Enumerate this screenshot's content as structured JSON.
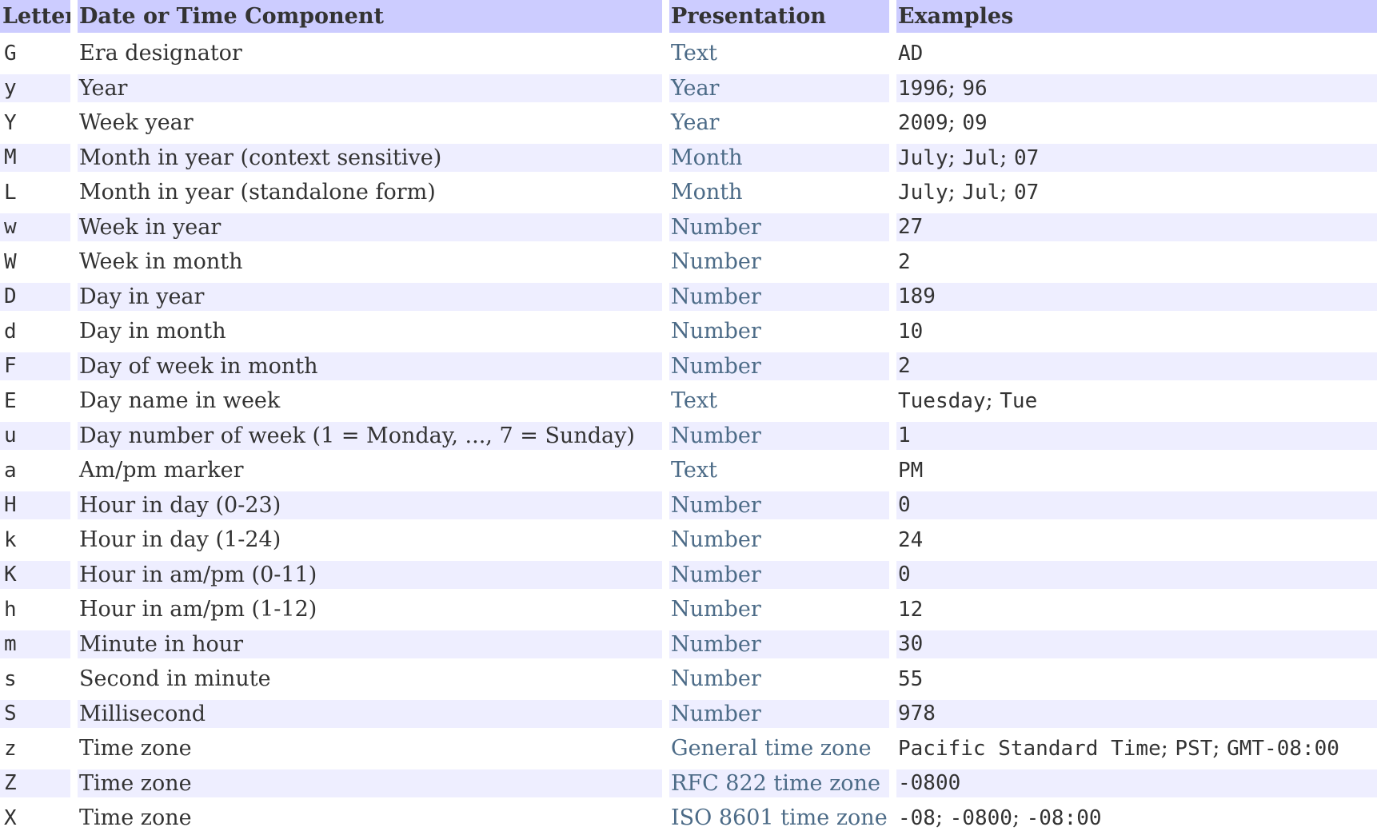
{
  "colors": {
    "header_bg": "#ccccff",
    "alt_row_bg": "#eeeeff",
    "row_bg": "#ffffff",
    "text": "#333333",
    "link": "#4c6b87"
  },
  "table": {
    "example_separator": "; ",
    "columns": [
      {
        "key": "letter",
        "label": "Letter"
      },
      {
        "key": "component",
        "label": "Date or Time Component"
      },
      {
        "key": "presentation",
        "label": "Presentation"
      },
      {
        "key": "examples",
        "label": "Examples"
      }
    ],
    "rows": [
      {
        "letter": "G",
        "component": "Era designator",
        "presentation": "Text",
        "examples": [
          "AD"
        ]
      },
      {
        "letter": "y",
        "component": "Year",
        "presentation": "Year",
        "examples": [
          "1996",
          "96"
        ]
      },
      {
        "letter": "Y",
        "component": "Week year",
        "presentation": "Year",
        "examples": [
          "2009",
          "09"
        ]
      },
      {
        "letter": "M",
        "component": "Month in year (context sensitive)",
        "presentation": "Month",
        "examples": [
          "July",
          "Jul",
          "07"
        ]
      },
      {
        "letter": "L",
        "component": "Month in year (standalone form)",
        "presentation": "Month",
        "examples": [
          "July",
          "Jul",
          "07"
        ]
      },
      {
        "letter": "w",
        "component": "Week in year",
        "presentation": "Number",
        "examples": [
          "27"
        ]
      },
      {
        "letter": "W",
        "component": "Week in month",
        "presentation": "Number",
        "examples": [
          "2"
        ]
      },
      {
        "letter": "D",
        "component": "Day in year",
        "presentation": "Number",
        "examples": [
          "189"
        ]
      },
      {
        "letter": "d",
        "component": "Day in month",
        "presentation": "Number",
        "examples": [
          "10"
        ]
      },
      {
        "letter": "F",
        "component": "Day of week in month",
        "presentation": "Number",
        "examples": [
          "2"
        ]
      },
      {
        "letter": "E",
        "component": "Day name in week",
        "presentation": "Text",
        "examples": [
          "Tuesday",
          "Tue"
        ]
      },
      {
        "letter": "u",
        "component": "Day number of week (1 = Monday, ..., 7 = Sunday)",
        "presentation": "Number",
        "examples": [
          "1"
        ]
      },
      {
        "letter": "a",
        "component": "Am/pm marker",
        "presentation": "Text",
        "examples": [
          "PM"
        ]
      },
      {
        "letter": "H",
        "component": "Hour in day (0-23)",
        "presentation": "Number",
        "examples": [
          "0"
        ]
      },
      {
        "letter": "k",
        "component": "Hour in day (1-24)",
        "presentation": "Number",
        "examples": [
          "24"
        ]
      },
      {
        "letter": "K",
        "component": "Hour in am/pm (0-11)",
        "presentation": "Number",
        "examples": [
          "0"
        ]
      },
      {
        "letter": "h",
        "component": "Hour in am/pm (1-12)",
        "presentation": "Number",
        "examples": [
          "12"
        ]
      },
      {
        "letter": "m",
        "component": "Minute in hour",
        "presentation": "Number",
        "examples": [
          "30"
        ]
      },
      {
        "letter": "s",
        "component": "Second in minute",
        "presentation": "Number",
        "examples": [
          "55"
        ]
      },
      {
        "letter": "S",
        "component": "Millisecond",
        "presentation": "Number",
        "examples": [
          "978"
        ]
      },
      {
        "letter": "z",
        "component": "Time zone",
        "presentation": "General time zone",
        "examples": [
          "Pacific Standard Time",
          "PST",
          "GMT-08:00"
        ]
      },
      {
        "letter": "Z",
        "component": "Time zone",
        "presentation": "RFC 822 time zone",
        "examples": [
          "-0800"
        ]
      },
      {
        "letter": "X",
        "component": "Time zone",
        "presentation": "ISO 8601 time zone",
        "examples": [
          "-08",
          "-0800",
          "-08:00"
        ]
      }
    ]
  }
}
